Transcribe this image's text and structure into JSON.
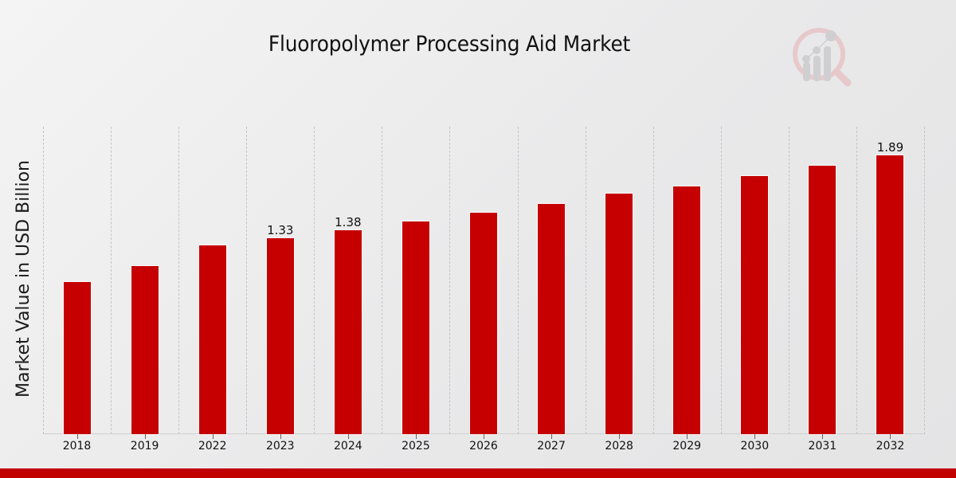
{
  "title": "Fluoropolymer Processing Aid Market",
  "logo": {
    "icon": "magnifier-bar-chart-logo-icon"
  },
  "colors": {
    "bar": "#c60000",
    "footer": "#c10000",
    "grid": "#c4c4c4"
  },
  "chart_data": {
    "type": "bar",
    "title": "Fluoropolymer Processing Aid Market",
    "xlabel": "",
    "ylabel": "Market Value in USD Billion",
    "categories": [
      "2018",
      "2019",
      "2022",
      "2023",
      "2024",
      "2025",
      "2026",
      "2027",
      "2028",
      "2029",
      "2030",
      "2031",
      "2032"
    ],
    "values": [
      1.03,
      1.14,
      1.28,
      1.33,
      1.38,
      1.44,
      1.5,
      1.56,
      1.63,
      1.68,
      1.75,
      1.82,
      1.89
    ],
    "data_labels": {
      "2023": "1.33",
      "2024": "1.38",
      "2032": "1.89"
    },
    "ylim": [
      0,
      2.08
    ],
    "grid": "vertical dashed lines between categories",
    "legend": null
  }
}
